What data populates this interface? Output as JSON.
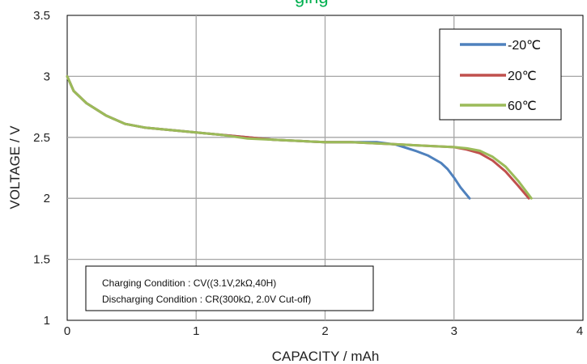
{
  "chart_data": {
    "type": "line",
    "title_fragment": "ging",
    "xlabel": "CAPACITY / mAh",
    "ylabel": "VOLTAGE / V",
    "xlim": [
      0,
      4
    ],
    "ylim": [
      1,
      3.5
    ],
    "xticks": [
      "0",
      "1",
      "2",
      "3",
      "4"
    ],
    "yticks": [
      "1",
      "1.5",
      "2",
      "2.5",
      "3",
      "3.5"
    ],
    "grid": true,
    "legend_position": "top-right",
    "series": [
      {
        "name": "-20℃",
        "color": "#4f81bd",
        "points": [
          [
            0,
            3.0
          ],
          [
            0.05,
            2.88
          ],
          [
            0.15,
            2.78
          ],
          [
            0.3,
            2.68
          ],
          [
            0.45,
            2.61
          ],
          [
            0.6,
            2.58
          ],
          [
            0.8,
            2.56
          ],
          [
            1.0,
            2.54
          ],
          [
            1.2,
            2.52
          ],
          [
            1.4,
            2.5
          ],
          [
            1.6,
            2.48
          ],
          [
            1.8,
            2.47
          ],
          [
            2.0,
            2.46
          ],
          [
            2.2,
            2.46
          ],
          [
            2.4,
            2.46
          ],
          [
            2.55,
            2.44
          ],
          [
            2.7,
            2.39
          ],
          [
            2.8,
            2.35
          ],
          [
            2.9,
            2.29
          ],
          [
            2.95,
            2.24
          ],
          [
            3.0,
            2.17
          ],
          [
            3.05,
            2.09
          ],
          [
            3.12,
            2.0
          ]
        ]
      },
      {
        "name": "20℃",
        "color": "#c0504d",
        "points": [
          [
            0,
            3.0
          ],
          [
            0.05,
            2.88
          ],
          [
            0.15,
            2.78
          ],
          [
            0.3,
            2.68
          ],
          [
            0.45,
            2.61
          ],
          [
            0.6,
            2.58
          ],
          [
            0.8,
            2.56
          ],
          [
            1.0,
            2.54
          ],
          [
            1.2,
            2.52
          ],
          [
            1.4,
            2.5
          ],
          [
            1.6,
            2.48
          ],
          [
            1.8,
            2.47
          ],
          [
            2.0,
            2.46
          ],
          [
            2.2,
            2.46
          ],
          [
            2.4,
            2.45
          ],
          [
            2.6,
            2.44
          ],
          [
            2.8,
            2.43
          ],
          [
            3.0,
            2.42
          ],
          [
            3.1,
            2.4
          ],
          [
            3.2,
            2.37
          ],
          [
            3.3,
            2.31
          ],
          [
            3.4,
            2.22
          ],
          [
            3.5,
            2.1
          ],
          [
            3.58,
            2.0
          ]
        ]
      },
      {
        "name": "60℃",
        "color": "#9bbb59",
        "points": [
          [
            0,
            3.0
          ],
          [
            0.05,
            2.88
          ],
          [
            0.15,
            2.78
          ],
          [
            0.3,
            2.68
          ],
          [
            0.45,
            2.61
          ],
          [
            0.6,
            2.58
          ],
          [
            0.8,
            2.56
          ],
          [
            1.0,
            2.54
          ],
          [
            1.2,
            2.52
          ],
          [
            1.4,
            2.49
          ],
          [
            1.6,
            2.48
          ],
          [
            1.8,
            2.47
          ],
          [
            2.0,
            2.46
          ],
          [
            2.2,
            2.46
          ],
          [
            2.4,
            2.45
          ],
          [
            2.6,
            2.44
          ],
          [
            2.8,
            2.43
          ],
          [
            3.0,
            2.42
          ],
          [
            3.1,
            2.41
          ],
          [
            3.2,
            2.39
          ],
          [
            3.3,
            2.34
          ],
          [
            3.4,
            2.26
          ],
          [
            3.5,
            2.14
          ],
          [
            3.6,
            2.0
          ]
        ]
      }
    ],
    "annotation_lines": [
      "Charging Condition : CV((3.1V,2kΩ,40H)",
      "Discharging Condition : CR(300kΩ, 2.0V Cut-off)"
    ]
  },
  "colors": {
    "title": "#00b050",
    "grid": "#a6a6a6",
    "frame": "#000000"
  }
}
